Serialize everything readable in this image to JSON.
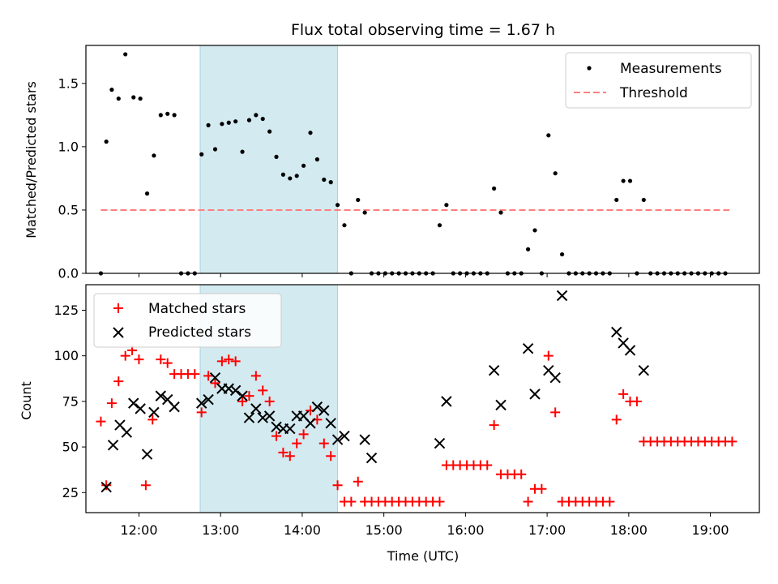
{
  "chart_data": [
    {
      "type": "scatter",
      "title": "Flux total observing time = 1.67 h",
      "xlabel": "",
      "ylabel": "Matched/Predicted stars",
      "xlim": [
        "11:21",
        "19:36"
      ],
      "ylim": [
        0,
        1.8
      ],
      "x_ticks": [
        "12:00",
        "13:00",
        "14:00",
        "15:00",
        "16:00",
        "17:00",
        "18:00",
        "19:00"
      ],
      "y_ticks": [
        "0.0",
        "0.5",
        "1.0",
        "1.5"
      ],
      "y_tick_values": [
        0,
        0.5,
        1.0,
        1.5
      ],
      "grid": false,
      "legend_position": "top-right",
      "highlight_span": {
        "start": "12:45",
        "end": "14:26",
        "color": "#d3eaf0"
      },
      "series": [
        {
          "name": "Measurements",
          "marker": "dot",
          "color": "#000000",
          "points": [
            [
              "11:32",
              0
            ],
            [
              "11:36",
              1.04
            ],
            [
              "11:40",
              1.45
            ],
            [
              "11:45",
              1.38
            ],
            [
              "11:50",
              1.73
            ],
            [
              "11:56",
              1.39
            ],
            [
              "12:01",
              1.38
            ],
            [
              "12:06",
              0.63
            ],
            [
              "12:11",
              0.93
            ],
            [
              "12:16",
              1.25
            ],
            [
              "12:21",
              1.26
            ],
            [
              "12:26",
              1.25
            ],
            [
              "12:31",
              0
            ],
            [
              "12:36",
              0
            ],
            [
              "12:41",
              0
            ],
            [
              "12:46",
              0.94
            ],
            [
              "12:51",
              1.17
            ],
            [
              "12:56",
              0.98
            ],
            [
              "13:01",
              1.18
            ],
            [
              "13:06",
              1.19
            ],
            [
              "13:11",
              1.2
            ],
            [
              "13:16",
              0.96
            ],
            [
              "13:21",
              1.21
            ],
            [
              "13:26",
              1.25
            ],
            [
              "13:31",
              1.22
            ],
            [
              "13:36",
              1.12
            ],
            [
              "13:41",
              0.92
            ],
            [
              "13:46",
              0.78
            ],
            [
              "13:51",
              0.75
            ],
            [
              "13:56",
              0.77
            ],
            [
              "14:01",
              0.85
            ],
            [
              "14:06",
              1.11
            ],
            [
              "14:11",
              0.9
            ],
            [
              "14:16",
              0.74
            ],
            [
              "14:21",
              0.72
            ],
            [
              "14:26",
              0.54
            ],
            [
              "14:31",
              0.38
            ],
            [
              "14:36",
              0
            ],
            [
              "14:41",
              0.58
            ],
            [
              "14:46",
              0.48
            ],
            [
              "14:51",
              0
            ],
            [
              "14:56",
              0
            ],
            [
              "15:01",
              0
            ],
            [
              "15:06",
              0
            ],
            [
              "15:11",
              0
            ],
            [
              "15:16",
              0
            ],
            [
              "15:21",
              0
            ],
            [
              "15:26",
              0
            ],
            [
              "15:31",
              0
            ],
            [
              "15:36",
              0
            ],
            [
              "15:41",
              0.38
            ],
            [
              "15:46",
              0.54
            ],
            [
              "15:51",
              0
            ],
            [
              "15:56",
              0
            ],
            [
              "16:01",
              0
            ],
            [
              "16:06",
              0
            ],
            [
              "16:11",
              0
            ],
            [
              "16:16",
              0
            ],
            [
              "16:21",
              0.67
            ],
            [
              "16:26",
              0.48
            ],
            [
              "16:31",
              0
            ],
            [
              "16:36",
              0
            ],
            [
              "16:41",
              0
            ],
            [
              "16:46",
              0.19
            ],
            [
              "16:51",
              0.34
            ],
            [
              "16:56",
              0
            ],
            [
              "17:01",
              1.09
            ],
            [
              "17:06",
              0.79
            ],
            [
              "17:11",
              0.15
            ],
            [
              "17:16",
              0
            ],
            [
              "17:21",
              0
            ],
            [
              "17:26",
              0
            ],
            [
              "17:31",
              0
            ],
            [
              "17:36",
              0
            ],
            [
              "17:41",
              0
            ],
            [
              "17:46",
              0
            ],
            [
              "17:51",
              0.58
            ],
            [
              "17:56",
              0.73
            ],
            [
              "18:01",
              0.73
            ],
            [
              "18:06",
              0
            ],
            [
              "18:11",
              0.58
            ],
            [
              "18:16",
              0
            ],
            [
              "18:21",
              0
            ],
            [
              "18:26",
              0
            ],
            [
              "18:31",
              0
            ],
            [
              "18:36",
              0
            ],
            [
              "18:41",
              0
            ],
            [
              "18:46",
              0
            ],
            [
              "18:51",
              0
            ],
            [
              "18:56",
              0
            ],
            [
              "19:01",
              0
            ],
            [
              "19:06",
              0
            ],
            [
              "19:11",
              0
            ]
          ]
        },
        {
          "name": "Threshold",
          "marker": "dashed-line",
          "color": "#ff7f7f",
          "points": [
            [
              "11:32",
              0.5
            ],
            [
              "19:14",
              0.5
            ]
          ]
        }
      ]
    },
    {
      "type": "scatter",
      "title": "",
      "xlabel": "Time (UTC)",
      "ylabel": "Count",
      "xlim": [
        "11:21",
        "19:36"
      ],
      "ylim": [
        14,
        139
      ],
      "x_ticks": [
        "12:00",
        "13:00",
        "14:00",
        "15:00",
        "16:00",
        "17:00",
        "18:00",
        "19:00"
      ],
      "y_ticks": [
        "25",
        "50",
        "75",
        "100",
        "125"
      ],
      "y_tick_values": [
        25,
        50,
        75,
        100,
        125
      ],
      "grid": false,
      "legend_position": "top-left",
      "highlight_span": {
        "start": "12:45",
        "end": "14:26",
        "color": "#d3eaf0"
      },
      "series": [
        {
          "name": "Matched stars",
          "marker": "plus",
          "color": "#ff0000",
          "points": [
            [
              "11:32",
              64
            ],
            [
              "11:36",
              29
            ],
            [
              "11:40",
              74
            ],
            [
              "11:45",
              86
            ],
            [
              "11:50",
              100
            ],
            [
              "11:55",
              103
            ],
            [
              "12:00",
              98
            ],
            [
              "12:05",
              29
            ],
            [
              "12:10",
              65
            ],
            [
              "12:16",
              98
            ],
            [
              "12:21",
              96
            ],
            [
              "12:26",
              90
            ],
            [
              "12:31",
              90
            ],
            [
              "12:36",
              90
            ],
            [
              "12:41",
              90
            ],
            [
              "12:46",
              69
            ],
            [
              "12:51",
              89
            ],
            [
              "12:56",
              85
            ],
            [
              "13:01",
              97
            ],
            [
              "13:06",
              98
            ],
            [
              "13:11",
              97
            ],
            [
              "13:16",
              75
            ],
            [
              "13:21",
              78
            ],
            [
              "13:26",
              89
            ],
            [
              "13:31",
              81
            ],
            [
              "13:36",
              75
            ],
            [
              "13:41",
              56
            ],
            [
              "13:46",
              47
            ],
            [
              "13:51",
              45
            ],
            [
              "13:56",
              52
            ],
            [
              "14:01",
              57
            ],
            [
              "14:06",
              70
            ],
            [
              "14:11",
              65
            ],
            [
              "14:16",
              52
            ],
            [
              "14:21",
              45
            ],
            [
              "14:26",
              29
            ],
            [
              "14:31",
              20
            ],
            [
              "14:36",
              20
            ],
            [
              "14:41",
              31
            ],
            [
              "14:46",
              20
            ],
            [
              "14:51",
              20
            ],
            [
              "14:56",
              20
            ],
            [
              "15:01",
              20
            ],
            [
              "15:06",
              20
            ],
            [
              "15:11",
              20
            ],
            [
              "15:16",
              20
            ],
            [
              "15:21",
              20
            ],
            [
              "15:26",
              20
            ],
            [
              "15:31",
              20
            ],
            [
              "15:36",
              20
            ],
            [
              "15:41",
              20
            ],
            [
              "15:46",
              40
            ],
            [
              "15:51",
              40
            ],
            [
              "15:56",
              40
            ],
            [
              "16:01",
              40
            ],
            [
              "16:06",
              40
            ],
            [
              "16:11",
              40
            ],
            [
              "16:16",
              40
            ],
            [
              "16:21",
              62
            ],
            [
              "16:26",
              35
            ],
            [
              "16:31",
              35
            ],
            [
              "16:36",
              35
            ],
            [
              "16:41",
              35
            ],
            [
              "16:46",
              20
            ],
            [
              "16:51",
              27
            ],
            [
              "16:56",
              27
            ],
            [
              "17:01",
              100
            ],
            [
              "17:06",
              69
            ],
            [
              "17:11",
              20
            ],
            [
              "17:16",
              20
            ],
            [
              "17:21",
              20
            ],
            [
              "17:26",
              20
            ],
            [
              "17:31",
              20
            ],
            [
              "17:36",
              20
            ],
            [
              "17:41",
              20
            ],
            [
              "17:46",
              20
            ],
            [
              "17:51",
              65
            ],
            [
              "17:56",
              79
            ],
            [
              "18:01",
              75
            ],
            [
              "18:06",
              75
            ],
            [
              "18:11",
              53
            ],
            [
              "18:16",
              53
            ],
            [
              "18:21",
              53
            ],
            [
              "18:26",
              53
            ],
            [
              "18:31",
              53
            ],
            [
              "18:36",
              53
            ],
            [
              "18:41",
              53
            ],
            [
              "18:46",
              53
            ],
            [
              "18:51",
              53
            ],
            [
              "18:56",
              53
            ],
            [
              "19:01",
              53
            ],
            [
              "19:06",
              53
            ],
            [
              "19:11",
              53
            ],
            [
              "19:16",
              53
            ]
          ]
        },
        {
          "name": "Predicted stars",
          "marker": "x",
          "color": "#000000",
          "points": [
            [
              "11:36",
              28
            ],
            [
              "11:41",
              51
            ],
            [
              "11:46",
              62
            ],
            [
              "11:51",
              58
            ],
            [
              "11:56",
              74
            ],
            [
              "12:01",
              71
            ],
            [
              "12:06",
              46
            ],
            [
              "12:11",
              69
            ],
            [
              "12:16",
              78
            ],
            [
              "12:21",
              76
            ],
            [
              "12:26",
              72
            ],
            [
              "12:46",
              74
            ],
            [
              "12:51",
              76
            ],
            [
              "12:56",
              88
            ],
            [
              "13:01",
              82
            ],
            [
              "13:06",
              82
            ],
            [
              "13:11",
              81
            ],
            [
              "13:16",
              78
            ],
            [
              "13:21",
              66
            ],
            [
              "13:26",
              71
            ],
            [
              "13:31",
              66
            ],
            [
              "13:36",
              67
            ],
            [
              "13:41",
              61
            ],
            [
              "13:46",
              60
            ],
            [
              "13:51",
              60
            ],
            [
              "13:56",
              67
            ],
            [
              "14:01",
              67
            ],
            [
              "14:06",
              63
            ],
            [
              "14:11",
              72
            ],
            [
              "14:16",
              70
            ],
            [
              "14:21",
              63
            ],
            [
              "14:26",
              54
            ],
            [
              "14:31",
              56
            ],
            [
              "14:46",
              54
            ],
            [
              "14:51",
              44
            ],
            [
              "15:41",
              52
            ],
            [
              "15:46",
              75
            ],
            [
              "16:21",
              92
            ],
            [
              "16:26",
              73
            ],
            [
              "16:46",
              104
            ],
            [
              "16:51",
              79
            ],
            [
              "17:01",
              92
            ],
            [
              "17:06",
              88
            ],
            [
              "17:11",
              133
            ],
            [
              "17:51",
              113
            ],
            [
              "17:56",
              107
            ],
            [
              "18:01",
              103
            ],
            [
              "18:11",
              92
            ]
          ]
        }
      ]
    }
  ]
}
